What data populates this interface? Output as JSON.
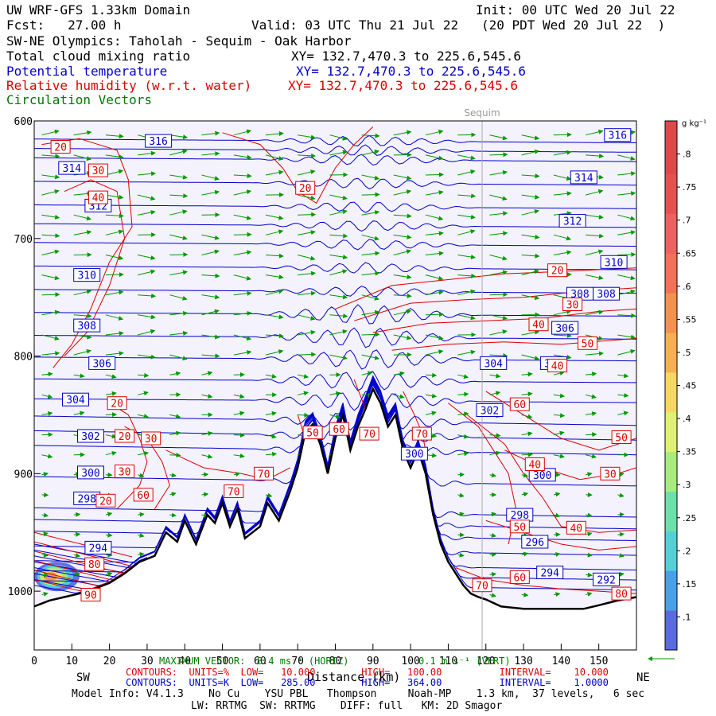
{
  "header": {
    "title": "UW WRF-GFS 1.33km Domain",
    "init": "Init: 00 UTC Wed 20 Jul 22",
    "fcst": "Fcst:   27.00 h",
    "valid": "Valid: 03 UTC Thu 21 Jul 22   (20 PDT Wed 20 Jul 22  )",
    "cross_section": "SW-NE Olympics: Taholah - Sequim - Oak Harbor",
    "fields": [
      {
        "name": "Total cloud mixing ratio",
        "xy": "XY= 132.7,470.3 to 225.6,545.6",
        "color": "#000000"
      },
      {
        "name": "Potential temperature",
        "xy": "XY= 132.7,470.3 to 225.6,545.6",
        "color": "#0000cc"
      },
      {
        "name": "Relative humidity (w.r.t. water)",
        "xy": "XY= 132.7,470.3 to 225.6,545.6",
        "color": "#dd0000"
      },
      {
        "name": "Circulation Vectors",
        "xy": "",
        "color": "#007700"
      }
    ]
  },
  "chart_data": {
    "type": "cross-section",
    "xlabel": "Distance (km)",
    "ylabel": "",
    "xlim": [
      0,
      160
    ],
    "ylim": [
      1050,
      600
    ],
    "x_ticks": [
      0,
      10,
      20,
      30,
      40,
      50,
      60,
      70,
      80,
      90,
      100,
      110,
      120,
      130,
      140,
      150
    ],
    "y_ticks": [
      600,
      700,
      800,
      900,
      1000
    ],
    "y_tick_labels": [
      "600",
      "700",
      "800",
      "900",
      "1000"
    ],
    "left_end_label": "SW",
    "right_end_label": "NE",
    "marker": {
      "x": 119,
      "label": "Sequim"
    },
    "terrain": {
      "x": [
        0,
        4,
        8,
        12,
        16,
        20,
        24,
        28,
        32,
        35,
        38,
        40,
        43,
        46,
        48,
        50,
        52,
        54,
        56,
        58,
        60,
        62,
        65,
        68,
        70,
        72,
        74,
        76,
        78,
        80,
        82,
        84,
        86,
        88,
        90,
        92,
        94,
        96,
        98,
        100,
        102,
        104,
        106,
        108,
        110,
        112,
        114,
        116,
        118,
        120,
        124,
        130,
        140,
        146,
        150,
        155,
        160
      ],
      "p": [
        1013,
        1008,
        1005,
        1002,
        998,
        993,
        985,
        975,
        970,
        950,
        958,
        940,
        960,
        935,
        942,
        925,
        945,
        930,
        955,
        950,
        945,
        925,
        940,
        915,
        895,
        865,
        858,
        875,
        900,
        870,
        850,
        880,
        860,
        845,
        828,
        840,
        860,
        850,
        880,
        895,
        880,
        900,
        935,
        960,
        975,
        985,
        995,
        1002,
        1005,
        1007,
        1013,
        1015,
        1015,
        1015,
        1012,
        1008,
        1005
      ]
    },
    "theta_contours": {
      "units": "K",
      "low": 285.0,
      "high": 364.0,
      "interval": 1.0,
      "levels": [
        {
          "k": 316,
          "p": 617
        },
        {
          "k": 314,
          "p": 633
        },
        {
          "k": 312,
          "p": 673
        },
        {
          "k": 310,
          "p": 705
        },
        {
          "k": 308,
          "p": 745
        },
        {
          "k": 306,
          "p": 784
        },
        {
          "k": 304,
          "p": 821
        },
        {
          "k": 302,
          "p": 855
        },
        {
          "k": 300,
          "p": 880
        },
        {
          "k": 298,
          "p": 933
        },
        {
          "k": 296,
          "p": 953
        },
        {
          "k": 294,
          "p": 978
        },
        {
          "k": 292,
          "p": 995
        }
      ],
      "labels": [
        {
          "text": "316",
          "x": 33,
          "p": 617
        },
        {
          "text": "316",
          "x": 155,
          "p": 612
        },
        {
          "text": "314",
          "x": 10,
          "p": 640
        },
        {
          "text": "314",
          "x": 146,
          "p": 648
        },
        {
          "text": "312",
          "x": 17,
          "p": 672
        },
        {
          "text": "312",
          "x": 143,
          "p": 685
        },
        {
          "text": "310",
          "x": 14,
          "p": 731
        },
        {
          "text": "310",
          "x": 154,
          "p": 720
        },
        {
          "text": "308",
          "x": 14,
          "p": 774
        },
        {
          "text": "308",
          "x": 145,
          "p": 747
        },
        {
          "text": "308",
          "x": 152,
          "p": 747
        },
        {
          "text": "306",
          "x": 18,
          "p": 806
        },
        {
          "text": "306",
          "x": 141,
          "p": 776
        },
        {
          "text": "304",
          "x": 11,
          "p": 837
        },
        {
          "text": "304",
          "x": 122,
          "p": 806
        },
        {
          "text": "304",
          "x": 138,
          "p": 806
        },
        {
          "text": "302",
          "x": 15,
          "p": 868
        },
        {
          "text": "302",
          "x": 121,
          "p": 846
        },
        {
          "text": "300",
          "x": 15,
          "p": 899
        },
        {
          "text": "300",
          "x": 101,
          "p": 883
        },
        {
          "text": "300",
          "x": 135,
          "p": 901
        },
        {
          "text": "298",
          "x": 14,
          "p": 921
        },
        {
          "text": "298",
          "x": 129,
          "p": 935
        },
        {
          "text": "296",
          "x": 133,
          "p": 958
        },
        {
          "text": "294",
          "x": 17,
          "p": 963
        },
        {
          "text": "294",
          "x": 137,
          "p": 984
        },
        {
          "text": "292",
          "x": 152,
          "p": 990
        }
      ]
    },
    "rh_contours": {
      "units": "%",
      "low": 10.0,
      "high": 100.0,
      "interval": 10.0,
      "labels": [
        {
          "text": "20",
          "x": 7,
          "p": 622
        },
        {
          "text": "30",
          "x": 17,
          "p": 642
        },
        {
          "text": "40",
          "x": 17,
          "p": 665
        },
        {
          "text": "20",
          "x": 72,
          "p": 657
        },
        {
          "text": "20",
          "x": 139,
          "p": 727
        },
        {
          "text": "30",
          "x": 143,
          "p": 756
        },
        {
          "text": "40",
          "x": 134,
          "p": 773
        },
        {
          "text": "50",
          "x": 147,
          "p": 789
        },
        {
          "text": "40",
          "x": 139,
          "p": 808
        },
        {
          "text": "20",
          "x": 22,
          "p": 840
        },
        {
          "text": "20",
          "x": 24,
          "p": 868
        },
        {
          "text": "30",
          "x": 31,
          "p": 870
        },
        {
          "text": "60",
          "x": 129,
          "p": 841
        },
        {
          "text": "50",
          "x": 156,
          "p": 869
        },
        {
          "text": "50",
          "x": 74,
          "p": 865
        },
        {
          "text": "60",
          "x": 81,
          "p": 862
        },
        {
          "text": "70",
          "x": 89,
          "p": 866
        },
        {
          "text": "70",
          "x": 103,
          "p": 866
        },
        {
          "text": "30",
          "x": 24,
          "p": 898
        },
        {
          "text": "70",
          "x": 61,
          "p": 900
        },
        {
          "text": "40",
          "x": 133,
          "p": 892
        },
        {
          "text": "30",
          "x": 153,
          "p": 900
        },
        {
          "text": "60",
          "x": 29,
          "p": 918
        },
        {
          "text": "20",
          "x": 19,
          "p": 923
        },
        {
          "text": "70",
          "x": 53,
          "p": 915
        },
        {
          "text": "50",
          "x": 129,
          "p": 945
        },
        {
          "text": "40",
          "x": 144,
          "p": 946
        },
        {
          "text": "80",
          "x": 16,
          "p": 977
        },
        {
          "text": "60",
          "x": 129,
          "p": 988
        },
        {
          "text": "90",
          "x": 15,
          "p": 1003
        },
        {
          "text": "70",
          "x": 119,
          "p": 995
        },
        {
          "text": "80",
          "x": 156,
          "p": 1002
        }
      ]
    },
    "cloud": {
      "x_range": [
        0,
        12
      ],
      "p_range": [
        975,
        1000
      ],
      "max_value": 0.8
    },
    "colorbar": {
      "units": "g kg⁻¹",
      "tick_labels": [
        ".1",
        ".15",
        ".2",
        ".25",
        ".3",
        ".35",
        ".4",
        ".45",
        ".5",
        ".55",
        ".6",
        ".65",
        ".7",
        ".75",
        ".8"
      ],
      "min": 0.05,
      "max": 0.85,
      "colors": [
        "#5a6ae0",
        "#4aa0e8",
        "#52d0d8",
        "#6ce0a8",
        "#a8ec80",
        "#e0f070",
        "#f6d860",
        "#f6b050",
        "#f69050",
        "#f47058",
        "#f06060",
        "#e85050",
        "#e04848"
      ]
    },
    "vectors": {
      "grid_dx": 8.5,
      "grid_dp": 17,
      "dominant_direction": "SW-to-NE"
    }
  },
  "footer": {
    "max_vector": "MAXIMUM VECTOR:  8.4 ms⁻¹ (HORIZ)",
    "max_vector_vert": "0.1 m s⁻¹ (VERT)",
    "rh_line": "CONTOURS:  UNITS=%  LOW=   10.000        HIGH=   100.00          INTERVAL=    10.000",
    "theta_line": "CONTOURS:  UNITS=K  LOW=   285.00        HIGH=   364.00          INTERVAL=    1.0000",
    "model_info": "Model Info: V4.1.3    No Cu    YSU PBL   Thompson     Noah-MP    1.3 km,  37 levels,   6 sec",
    "model_info2": "LW: RRTMG  SW: RRTMG    DIFF: full   KM: 2D Smagor"
  }
}
